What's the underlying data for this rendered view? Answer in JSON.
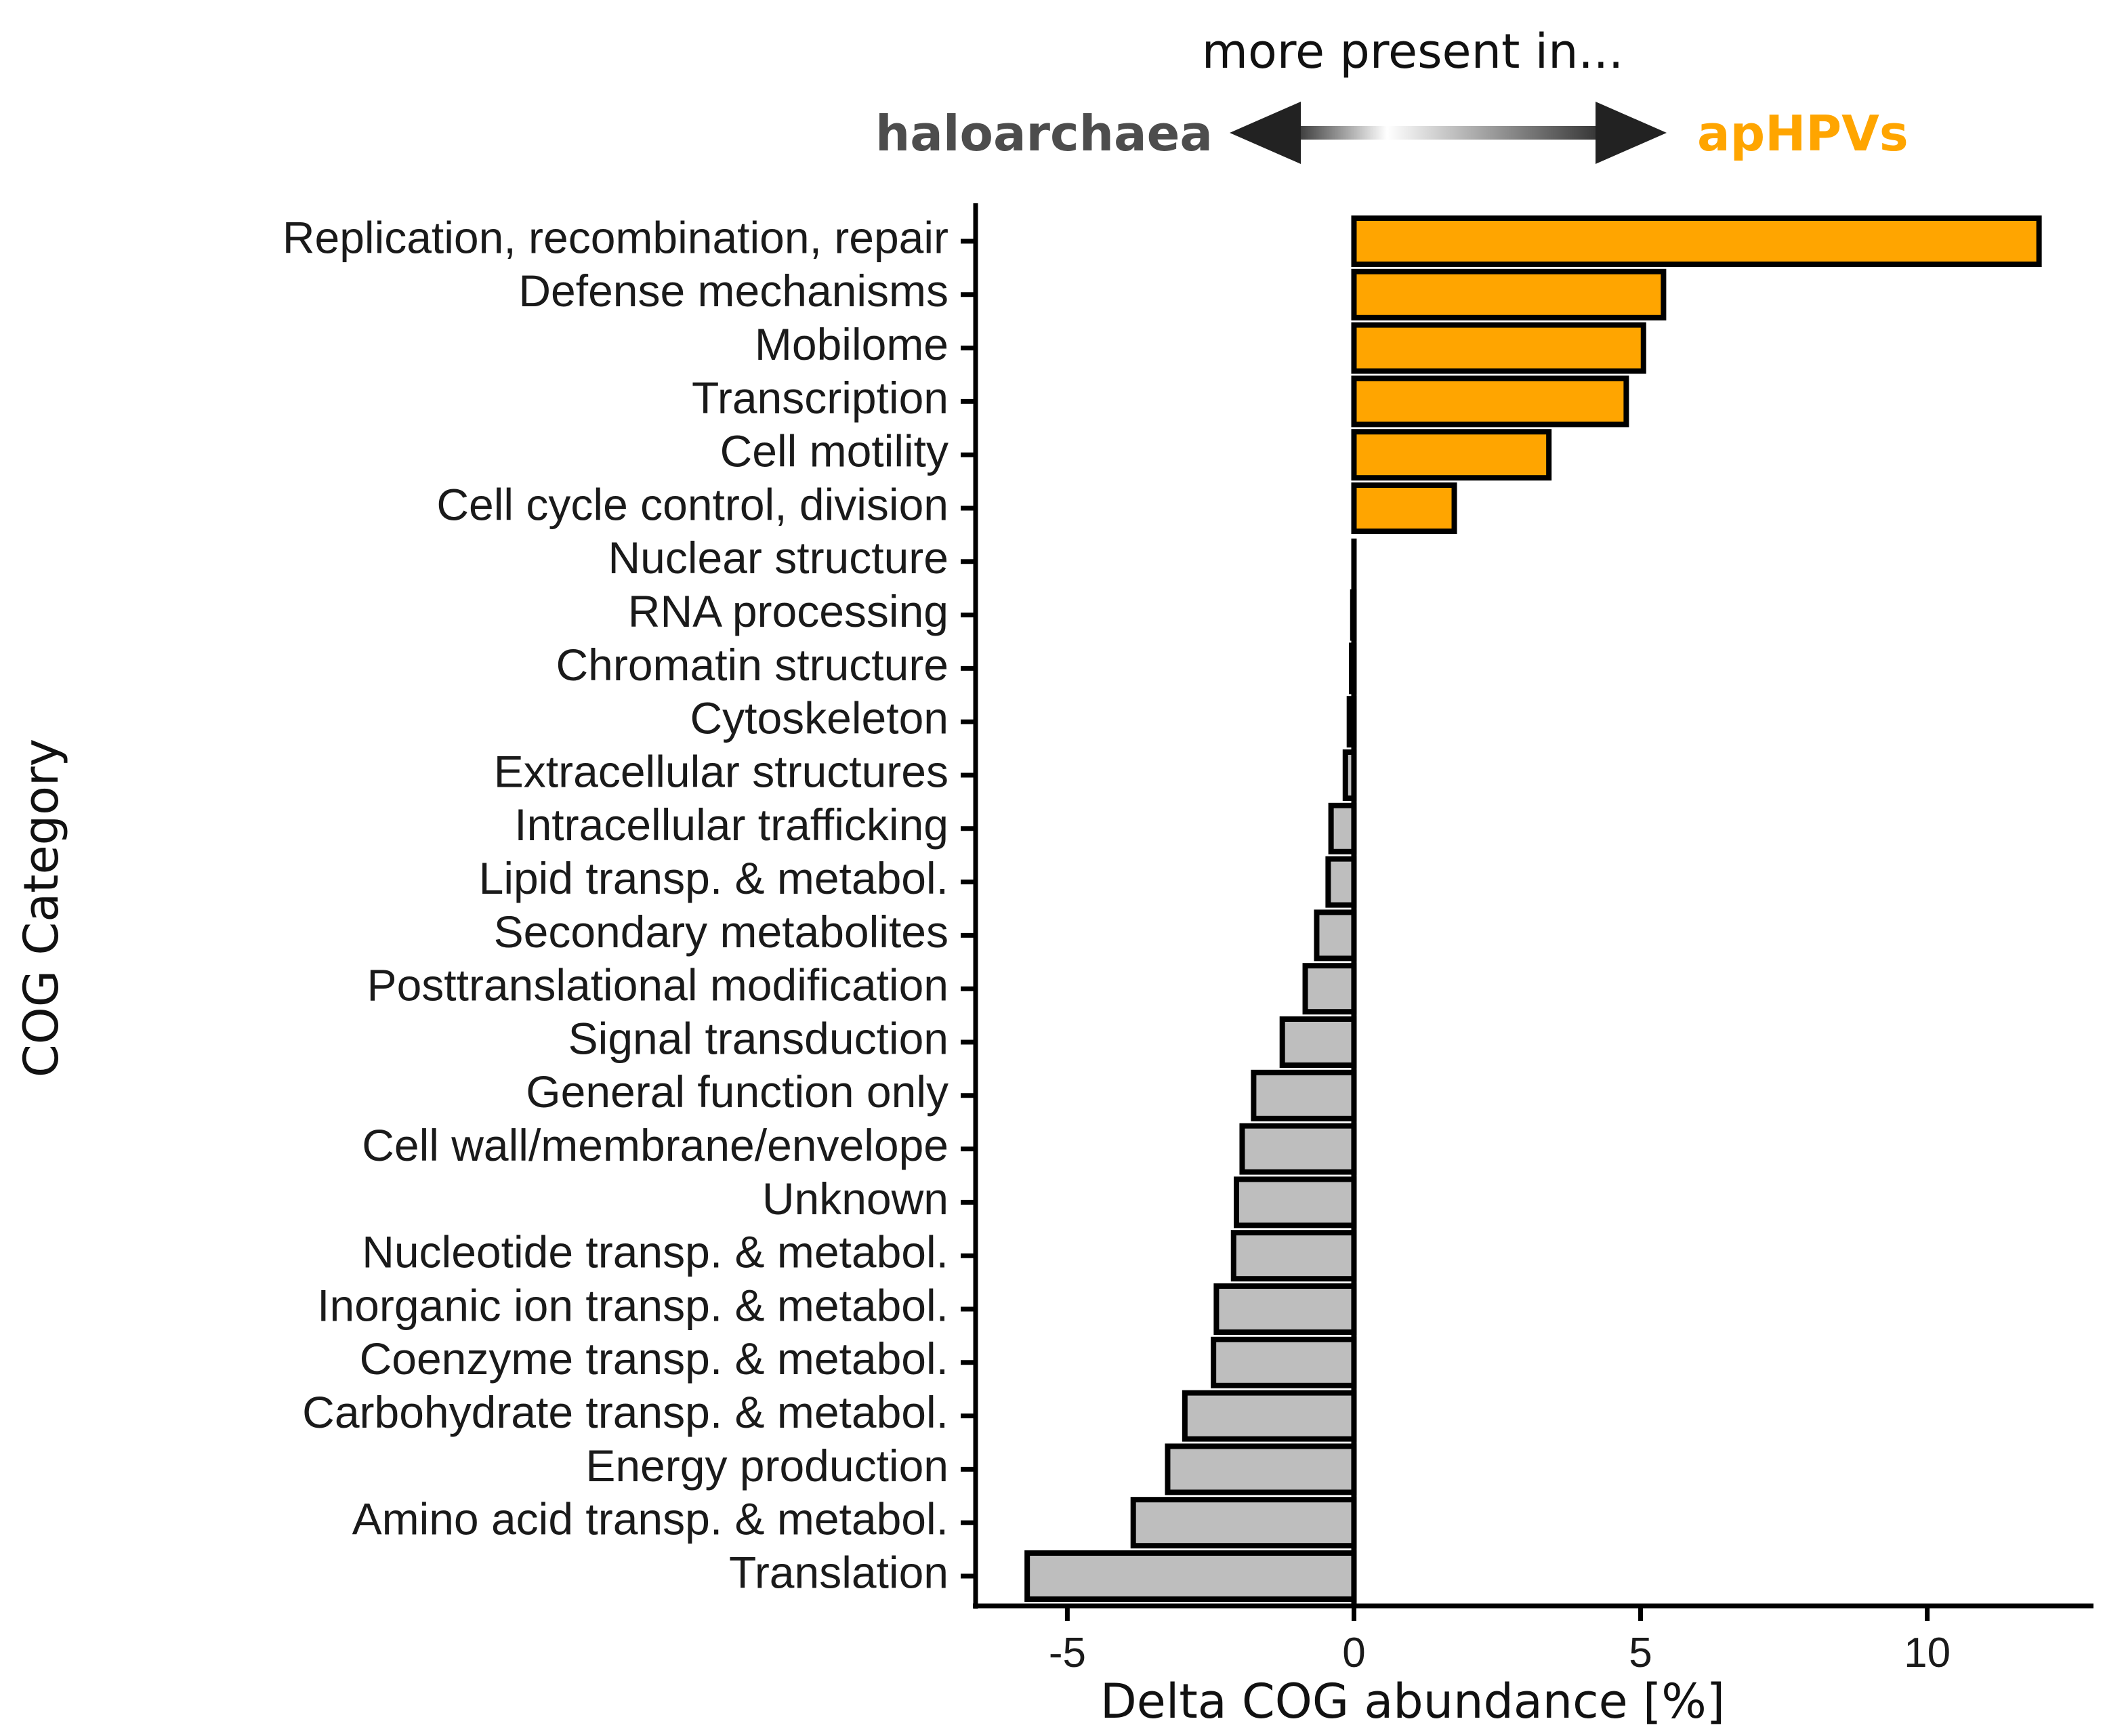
{
  "header": {
    "caption": "more present in...",
    "left_group": "haloarchaea",
    "right_group": "apHPVs"
  },
  "colors": {
    "left_group": "#4d4d4d",
    "right_group": "#FFA500",
    "bar_negative": "#BEBEBE",
    "bar_positive": "#FFA500",
    "axis": "#000000"
  },
  "chart_data": {
    "type": "bar",
    "orientation": "horizontal",
    "xlabel": "Delta COG abundance [%]",
    "ylabel": "COG Category",
    "xlim": [
      -6.6,
      12.9
    ],
    "xticks": [
      -5,
      0,
      5,
      10
    ],
    "xtick_labels": [
      "-5",
      "0",
      "5",
      "10"
    ],
    "grid": false,
    "categories": [
      "Replication, recombination, repair",
      "Defense mechanisms",
      "Mobilome",
      "Transcription",
      "Cell motility",
      "Cell cycle control, division",
      "Nuclear structure",
      "RNA processing",
      "Chromatin structure",
      "Cytoskeleton",
      "Extracellular structures",
      "Intracellular trafficking",
      "Lipid transp. & metabol.",
      "Secondary metabolites",
      "Posttranslational modification",
      "Signal transduction",
      "General function only",
      "Cell wall/membrane/envelope",
      "Unknown",
      "Nucleotide transp. & metabol.",
      "Inorganic ion transp. & metabol.",
      "Coenzyme transp. & metabol.",
      "Carbohydrate transp. & metabol.",
      "Energy production",
      "Amino acid transp. & metabol.",
      "Translation"
    ],
    "values": [
      11.95,
      5.4,
      5.05,
      4.75,
      3.4,
      1.75,
      0.0,
      -0.02,
      -0.04,
      -0.08,
      -0.15,
      -0.4,
      -0.45,
      -0.65,
      -0.85,
      -1.25,
      -1.75,
      -1.95,
      -2.05,
      -2.1,
      -2.4,
      -2.45,
      -2.95,
      -3.25,
      -3.85,
      -5.7
    ]
  }
}
